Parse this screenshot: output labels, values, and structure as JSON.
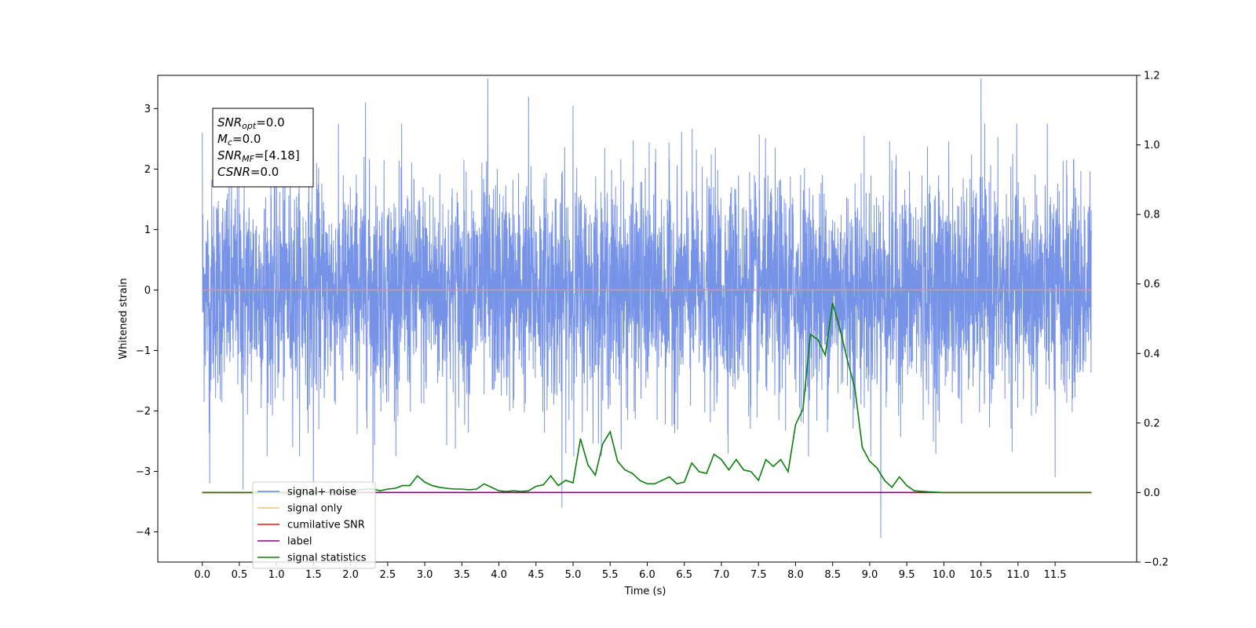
{
  "chart_data": {
    "type": "line",
    "xlabel": "Time (s)",
    "ylabel": "Whitened strain",
    "xlim": [
      -0.6,
      12.6
    ],
    "ylim": [
      -4.5,
      3.55
    ],
    "y2lim": [
      -0.2,
      1.2
    ],
    "x_ticks": [
      0.0,
      0.5,
      1.0,
      1.5,
      2.0,
      2.5,
      3.0,
      3.5,
      4.0,
      4.5,
      5.0,
      5.5,
      6.0,
      6.5,
      7.0,
      7.5,
      8.0,
      8.5,
      9.0,
      9.5,
      10.0,
      10.5,
      11.0,
      11.5
    ],
    "x_tick_labels": [
      "0.0",
      "0.5",
      "1.0",
      "1.5",
      "2.0",
      "2.5",
      "3.0",
      "3.5",
      "4.0",
      "4.5",
      "5.0",
      "5.5",
      "6.0",
      "6.5",
      "7.0",
      "7.5",
      "8.0",
      "8.5",
      "9.0",
      "9.5",
      "10.0",
      "10.5",
      "11.0",
      "11.5"
    ],
    "y_ticks": [
      3,
      2,
      1,
      0,
      -1,
      -2,
      -3,
      -4
    ],
    "y_tick_labels": [
      "3",
      "2",
      "1",
      "0",
      "−1",
      "−2",
      "−3",
      "−4"
    ],
    "y2_ticks": [
      1.2,
      1.0,
      0.8,
      0.6,
      0.4,
      0.2,
      0.0,
      -0.2
    ],
    "y2_tick_labels": [
      "1.2",
      "1.0",
      "0.8",
      "0.6",
      "0.4",
      "0.2",
      "0.0",
      "−0.2"
    ],
    "grid": false,
    "legend_position": "lower-left",
    "series": [
      {
        "name": "signal+ noise",
        "color": "#6b8ae6",
        "axis": "left",
        "x_range": [
          0.0,
          11.99
        ],
        "noise_std": 0.9,
        "peaks": [
          {
            "x": 0.0,
            "y": 2.6
          },
          {
            "x": 0.1,
            "y": -3.2
          },
          {
            "x": 0.55,
            "y": -3.3
          },
          {
            "x": 1.5,
            "y": -3.3
          },
          {
            "x": 2.3,
            "y": -3.3
          },
          {
            "x": 2.2,
            "y": 3.1
          },
          {
            "x": 3.85,
            "y": 3.5
          },
          {
            "x": 4.4,
            "y": 3.2
          },
          {
            "x": 4.85,
            "y": -3.6
          },
          {
            "x": 5.0,
            "y": 3.05
          },
          {
            "x": 9.15,
            "y": -4.1
          },
          {
            "x": 10.5,
            "y": 3.5
          },
          {
            "x": 11.5,
            "y": -3.1
          }
        ]
      },
      {
        "name": "signal only",
        "color": "#ffc15c",
        "axis": "left",
        "x": [
          0.0,
          11.99
        ],
        "y": [
          0.0,
          0.0
        ]
      },
      {
        "name": "cumilative SNR",
        "color": "#e8160c",
        "axis": "right",
        "x": [
          0.0,
          11.99
        ],
        "y": [
          0.0,
          0.0
        ]
      },
      {
        "name": "label",
        "color": "#7a0a7a",
        "axis": "right",
        "x": [
          0.0,
          11.99
        ],
        "y": [
          0.0,
          0.0
        ]
      },
      {
        "name": "signal statistics",
        "color": "#0a800a",
        "axis": "right",
        "x": [
          0.0,
          0.5,
          1.0,
          1.5,
          2.0,
          2.1,
          2.2,
          2.3,
          2.4,
          2.5,
          2.6,
          2.7,
          2.8,
          2.9,
          3.0,
          3.1,
          3.2,
          3.3,
          3.4,
          3.5,
          3.6,
          3.7,
          3.8,
          3.9,
          4.0,
          4.1,
          4.2,
          4.3,
          4.4,
          4.5,
          4.6,
          4.7,
          4.8,
          4.9,
          5.0,
          5.1,
          5.2,
          5.3,
          5.4,
          5.5,
          5.6,
          5.7,
          5.8,
          5.9,
          6.0,
          6.1,
          6.2,
          6.3,
          6.4,
          6.5,
          6.6,
          6.7,
          6.8,
          6.9,
          7.0,
          7.1,
          7.2,
          7.3,
          7.4,
          7.5,
          7.6,
          7.7,
          7.8,
          7.9,
          8.0,
          8.1,
          8.2,
          8.3,
          8.4,
          8.5,
          8.6,
          8.7,
          8.8,
          8.9,
          9.0,
          9.1,
          9.2,
          9.3,
          9.4,
          9.5,
          9.6,
          9.8,
          10.0,
          10.5,
          11.0,
          11.5,
          11.99
        ],
        "y": [
          0.0,
          0.0,
          0.0,
          0.0,
          0.005,
          0.007,
          0.01,
          0.01,
          0.005,
          0.01,
          0.012,
          0.02,
          0.02,
          0.048,
          0.03,
          0.02,
          0.015,
          0.012,
          0.01,
          0.01,
          0.008,
          0.01,
          0.025,
          0.015,
          0.005,
          0.003,
          0.005,
          0.003,
          0.005,
          0.018,
          0.022,
          0.048,
          0.02,
          0.035,
          0.028,
          0.155,
          0.08,
          0.05,
          0.14,
          0.175,
          0.09,
          0.065,
          0.055,
          0.035,
          0.025,
          0.025,
          0.035,
          0.045,
          0.025,
          0.03,
          0.085,
          0.06,
          0.055,
          0.11,
          0.095,
          0.065,
          0.095,
          0.065,
          0.06,
          0.035,
          0.095,
          0.075,
          0.095,
          0.06,
          0.195,
          0.24,
          0.455,
          0.44,
          0.395,
          0.545,
          0.47,
          0.38,
          0.3,
          0.13,
          0.09,
          0.07,
          0.035,
          0.015,
          0.045,
          0.02,
          0.005,
          0.002,
          0.0,
          0.0,
          0.0,
          0.0,
          0.0
        ]
      }
    ],
    "zero_line": {
      "color": "#c8a27a",
      "y": 0.0
    },
    "annotation": {
      "lines": [
        {
          "sym": "SNR",
          "sub": "opt",
          "val": "=0.0"
        },
        {
          "sym": "M",
          "sub": "c",
          "val": "=0.0"
        },
        {
          "sym": "SNR",
          "sub": "MF",
          "val": "=[4.18]"
        },
        {
          "sym": "CSNR",
          "sub": "",
          "val": "=0.0"
        }
      ]
    },
    "legend": [
      {
        "label": "signal+ noise",
        "color": "#6b8ae6"
      },
      {
        "label": "signal only",
        "color": "#ffc15c"
      },
      {
        "label": "cumilative SNR",
        "color": "#e8160c"
      },
      {
        "label": "label",
        "color": "#7a0a7a"
      },
      {
        "label": "signal statistics",
        "color": "#0a800a"
      }
    ]
  }
}
